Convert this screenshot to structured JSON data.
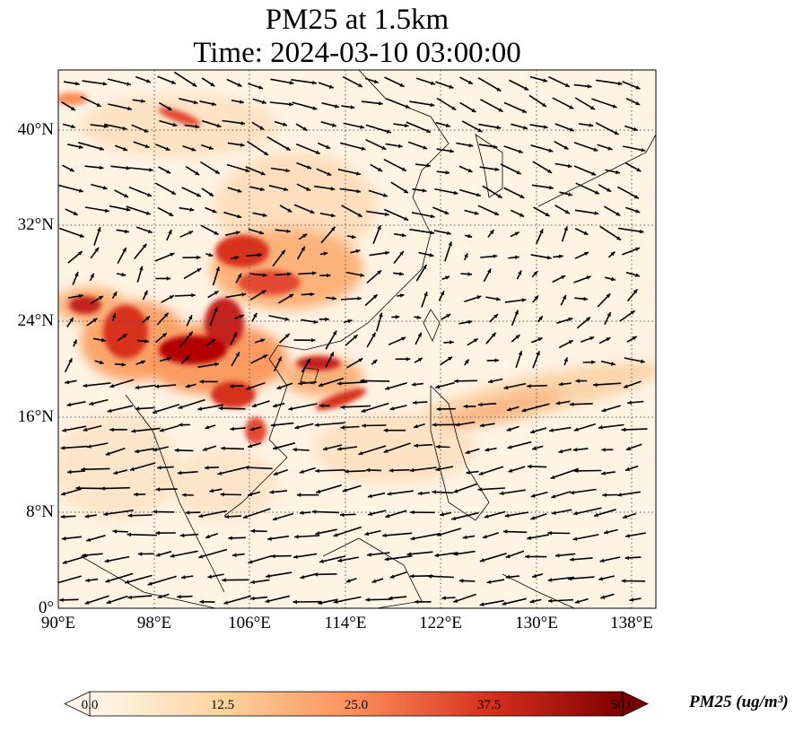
{
  "title": {
    "line1": "PM25 at 1.5km",
    "line2": "Time: 2024-03-10 03:00:00"
  },
  "map": {
    "projection": "PlateCarree",
    "lon_range": [
      90,
      140
    ],
    "lat_range": [
      0,
      45
    ],
    "gridlines": "dotted",
    "x_ticks": [
      "90°E",
      "98°E",
      "106°E",
      "114°E",
      "122°E",
      "130°E",
      "138°E"
    ],
    "y_ticks": [
      "0°",
      "8°N",
      "16°N",
      "24°N",
      "32°N",
      "40°N"
    ],
    "overlay": "wind vectors (black arrows)",
    "high_concentration_regions": [
      "Myanmar / Yunnan",
      "Sichuan Basin",
      "Northern Vietnam / Laos",
      "Hainan / South China",
      "Philippine Sea band"
    ]
  },
  "colorbar": {
    "ticks": [
      "0.0",
      "12.5",
      "25.0",
      "37.5",
      "50.0"
    ],
    "label": "PM25 (ug/m³)",
    "min": 0,
    "max": 50,
    "extend": "both",
    "colormap": "OrRd",
    "colors": [
      "#fff7ec",
      "#fdd49e",
      "#fc8d59",
      "#d7301f",
      "#7f0000"
    ]
  }
}
